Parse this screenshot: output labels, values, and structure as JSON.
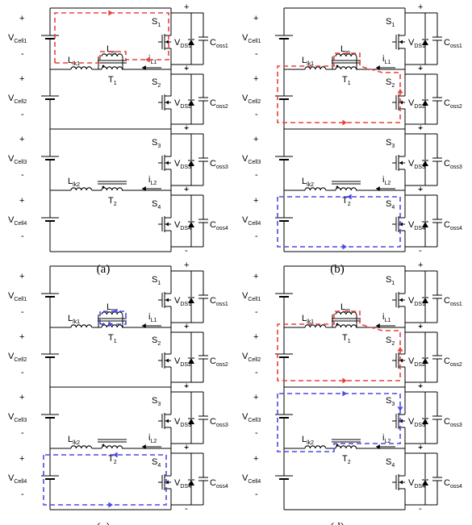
{
  "colors": {
    "wire": "#000000",
    "red_path": "#e8413b",
    "blue_path": "#4a4ae0"
  },
  "panels": [
    {
      "id": "a",
      "caption": "(a)",
      "paths": [
        "red-top"
      ]
    },
    {
      "id": "b",
      "caption": "(b)",
      "paths": [
        "red-mid",
        "blue-bottom"
      ]
    },
    {
      "id": "c",
      "caption": "(c)",
      "paths": [
        "blue-t1",
        "blue-bottom"
      ]
    },
    {
      "id": "d",
      "caption": "(d)",
      "paths": [
        "red-mid",
        "blue-mid"
      ]
    }
  ],
  "labels": {
    "cells": [
      "V",
      "V",
      "V",
      "V"
    ],
    "cell_subs": [
      "Cell1",
      "Cell2",
      "Cell3",
      "Cell4"
    ],
    "plus": "+",
    "minus": "-",
    "switches": [
      "S",
      "S",
      "S",
      "S"
    ],
    "switch_subs": [
      "1",
      "2",
      "3",
      "4"
    ],
    "vds": [
      "V",
      "V",
      "V",
      "V"
    ],
    "vds_subs": [
      "DS1",
      "DS2",
      "DS3",
      "DS4"
    ],
    "coss": [
      "C",
      "C",
      "C",
      "C"
    ],
    "coss_subs": [
      "oss1",
      "oss2",
      "oss3",
      "oss4"
    ],
    "llk": [
      "L",
      "L"
    ],
    "llk_subs": [
      "lk1",
      "lk2"
    ],
    "lm": "L",
    "lm_sub": "m",
    "transformers": [
      "T",
      "T"
    ],
    "transformer_subs": [
      "1",
      "2"
    ],
    "currents": [
      "i",
      "i"
    ],
    "current_subs": [
      "L1",
      "L2"
    ]
  }
}
